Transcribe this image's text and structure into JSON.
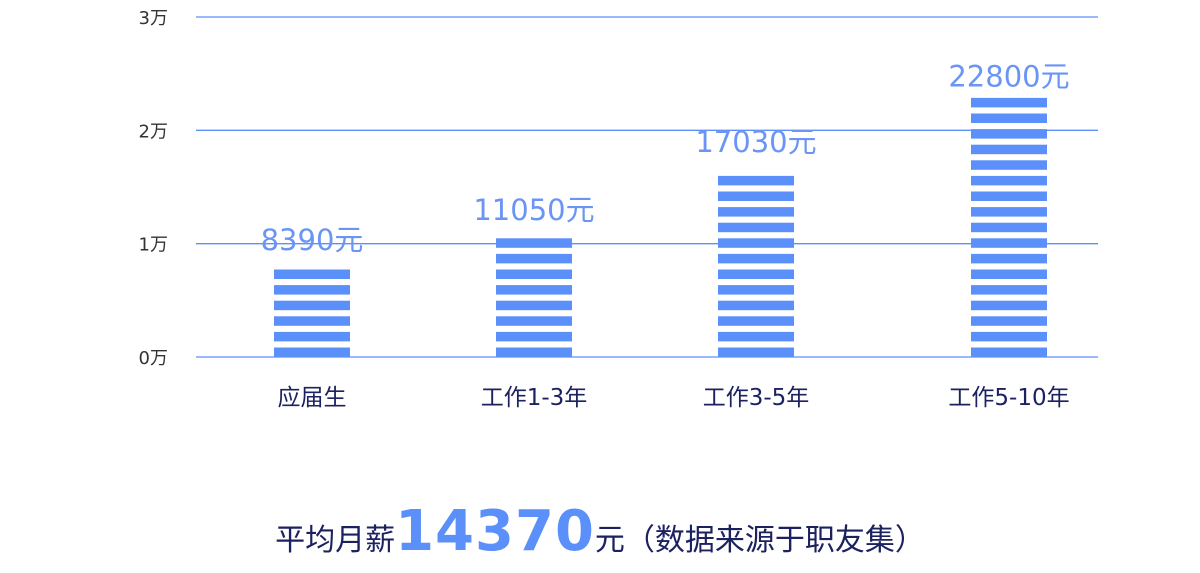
{
  "chart_data": {
    "type": "bar",
    "categories": [
      "应届生",
      "工作1-3年",
      "工作3-5年",
      "工作5-10年"
    ],
    "values": [
      8390,
      11050,
      17030,
      22800
    ],
    "data_labels": [
      "8390元",
      "11050元",
      "17030元",
      "22800元"
    ],
    "yticks": [
      0,
      10000,
      20000,
      30000
    ],
    "ytick_labels": [
      "0万",
      "1万",
      "2万",
      "3万"
    ],
    "ylim": [
      0,
      30000
    ],
    "grid": true,
    "bar_style": "horizontal-striped",
    "colors": {
      "bar": "#5b8ff9",
      "label": "#6b95f5",
      "grid": "#5b8ff9",
      "text": "#1c2260"
    }
  },
  "footer": {
    "prefix": "平均月薪",
    "amount": "14370",
    "suffix": "元（数据来源于职友集）"
  }
}
